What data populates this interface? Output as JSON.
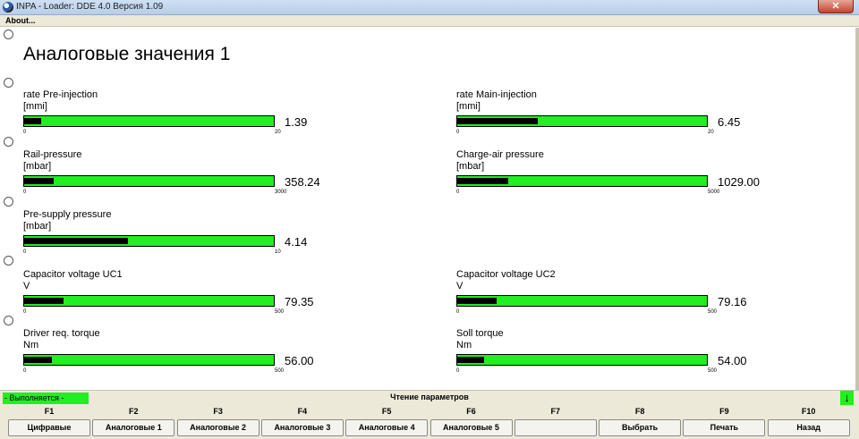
{
  "window": {
    "title": "INPA - Loader:  DDE 4.0 Версия 1.09",
    "close_glyph": "✕"
  },
  "menu": {
    "about": "About..."
  },
  "main": {
    "title": "Аналоговые значения 1",
    "gauges": [
      {
        "label": "rate Pre-injection",
        "unit": "[mmi]",
        "min": "0",
        "max": "20",
        "value": "1.39",
        "fraction": 0.0695
      },
      {
        "label": "rate Main-injection",
        "unit": "[mmi]",
        "min": "0",
        "max": "20",
        "value": "6.45",
        "fraction": 0.3225
      },
      {
        "label": "Rail-pressure",
        "unit": "[mbar]",
        "min": "0",
        "max": "3000",
        "value": "358.24",
        "fraction": 0.1194
      },
      {
        "label": "Charge-air pressure",
        "unit": "[mbar]",
        "min": "0",
        "max": "5000",
        "value": "1029.00",
        "fraction": 0.2058
      },
      {
        "label": "Pre-supply pressure",
        "unit": "[mbar]",
        "min": "0",
        "max": "10",
        "value": "4.14",
        "fraction": 0.414
      },
      {
        "label": "Capacitor voltage UC1",
        "unit": "V",
        "min": "0",
        "max": "500",
        "value": "79.35",
        "fraction": 0.1587
      },
      {
        "label": "Capacitor voltage UC2",
        "unit": "V",
        "min": "0",
        "max": "500",
        "value": "79.16",
        "fraction": 0.1583
      },
      {
        "label": "Driver req. torque",
        "unit": "Nm",
        "min": "0",
        "max": "500",
        "value": "56.00",
        "fraction": 0.112
      },
      {
        "label": "Soll torque",
        "unit": "Nm",
        "min": "0",
        "max": "500",
        "value": "54.00",
        "fraction": 0.108
      }
    ]
  },
  "status": {
    "running": "- Выполняется -",
    "reading": "Чтение параметров",
    "arrow_glyph": "↓"
  },
  "fkeys": [
    {
      "key": "F1",
      "label": "Цифравые"
    },
    {
      "key": "F2",
      "label": "Аналоговые 1"
    },
    {
      "key": "F3",
      "label": "Аналоговые 2"
    },
    {
      "key": "F4",
      "label": "Аналоговые 3"
    },
    {
      "key": "F5",
      "label": "Аналоговые 4"
    },
    {
      "key": "F6",
      "label": "Аналоговые 5"
    },
    {
      "key": "F7",
      "label": ""
    },
    {
      "key": "F8",
      "label": "Выбрать"
    },
    {
      "key": "F9",
      "label": "Печать"
    },
    {
      "key": "F10",
      "label": "Назад"
    }
  ],
  "colors": {
    "bar_green": "#22ee22",
    "bar_fill": "#000000",
    "panel": "#ece9d8"
  }
}
